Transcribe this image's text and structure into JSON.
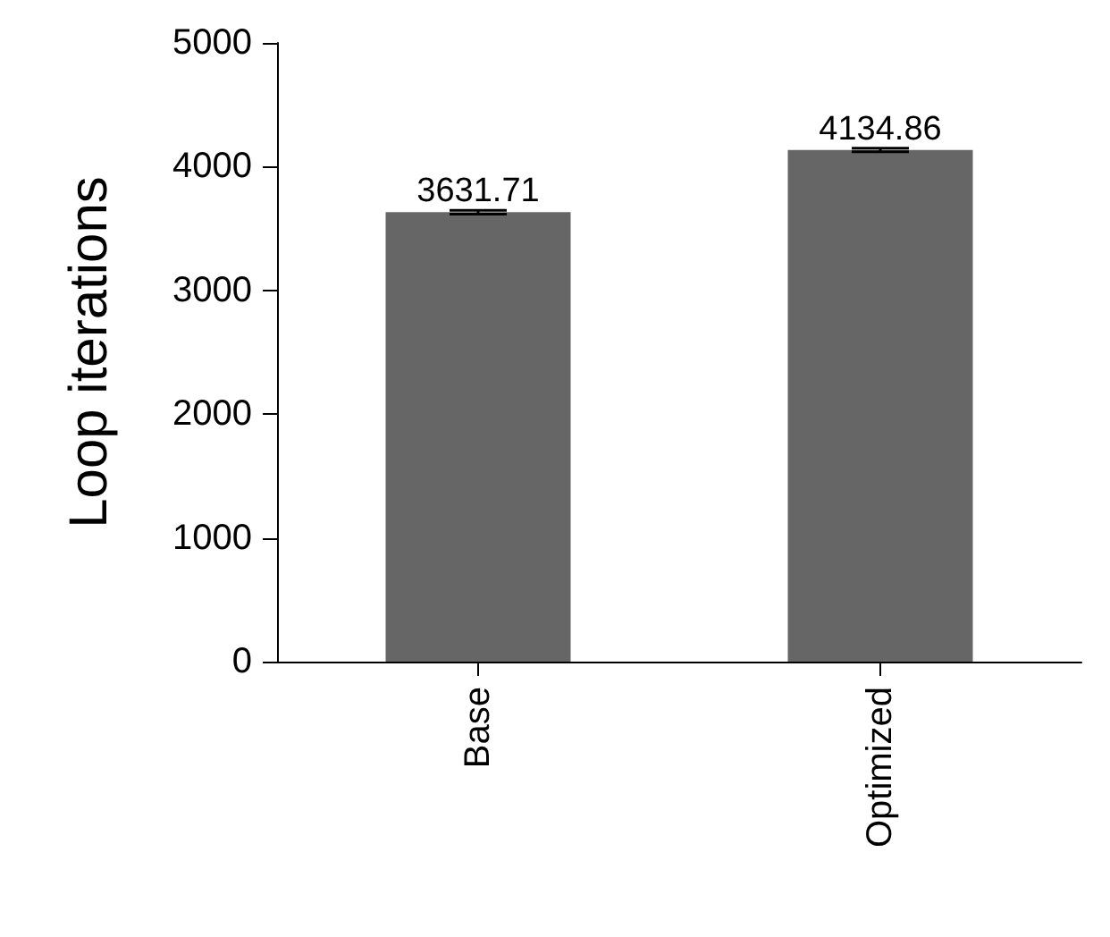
{
  "chart_data": {
    "type": "bar",
    "ylabel": "Loop iterations",
    "categories": [
      "Base",
      "Optimized"
    ],
    "values": [
      3631.71,
      4134.86
    ],
    "errors": [
      15,
      15
    ],
    "color": "#666666",
    "data_labels": true,
    "ylim": [
      0,
      5000
    ],
    "yticks": [
      0,
      1000,
      2000,
      3000,
      4000,
      5000
    ],
    "grid": false
  }
}
